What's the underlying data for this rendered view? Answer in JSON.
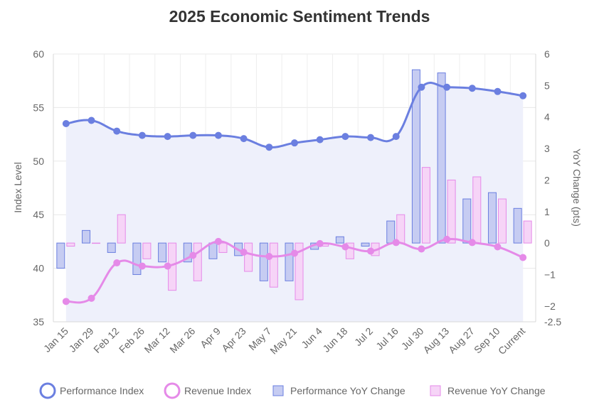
{
  "chart_data": {
    "type": "bar",
    "title": "2025 Economic Sentiment Trends",
    "categories": [
      "Jan 15",
      "Jan 29",
      "Feb 12",
      "Feb 26",
      "Mar 12",
      "Mar 26",
      "Apr 9",
      "Apr 23",
      "May 7",
      "May 21",
      "Jun 4",
      "Jun 18",
      "Jul 2",
      "Jul 16",
      "Jul 30",
      "Aug 13",
      "Aug 27",
      "Sep 10",
      "Current"
    ],
    "y_left": {
      "label": "Index Level",
      "min": 35,
      "max": 60,
      "ticks": [
        35,
        40,
        45,
        50,
        55,
        60
      ]
    },
    "y_right": {
      "label": "YoY Change (pts)",
      "min": -2.5,
      "max": 6,
      "ticks": [
        -2.5,
        -2,
        -1,
        0,
        1,
        2,
        3,
        4,
        5,
        6
      ],
      "tick_labels": [
        "-2.5",
        "−2",
        "−1",
        "0",
        "1",
        "2",
        "3",
        "4",
        "5",
        "6"
      ]
    },
    "series": [
      {
        "name": "Performance Index",
        "type": "line",
        "axis": "left",
        "color": "#6b7fe0",
        "fill": "#eef0fb",
        "values": [
          53.5,
          53.8,
          52.8,
          52.4,
          52.3,
          52.4,
          52.4,
          52.1,
          51.3,
          51.7,
          52.0,
          52.3,
          52.2,
          52.3,
          56.9,
          56.9,
          56.8,
          56.5,
          56.1
        ]
      },
      {
        "name": "Revenue Index",
        "type": "line",
        "axis": "left",
        "color": "#e58ae8",
        "values": [
          36.9,
          37.2,
          40.5,
          40.2,
          40.2,
          41.2,
          42.5,
          41.5,
          41.1,
          41.4,
          42.3,
          42.0,
          41.6,
          42.4,
          41.8,
          42.7,
          42.4,
          42.0,
          41.0
        ]
      },
      {
        "name": "Performance YoY Change",
        "type": "bar",
        "axis": "right",
        "color": "#6b7fe0",
        "fill": "#c6ccf2",
        "values": [
          -0.8,
          0.4,
          -0.3,
          -1.0,
          -0.6,
          -0.6,
          -0.5,
          -0.4,
          -1.2,
          -1.2,
          -0.2,
          0.2,
          -0.1,
          0.7,
          5.5,
          5.4,
          1.4,
          1.6,
          1.1
        ]
      },
      {
        "name": "Revenue YoY Change",
        "type": "bar",
        "axis": "right",
        "color": "#e58ae8",
        "fill": "#f6d4f7",
        "values": [
          -0.1,
          0.0,
          0.9,
          -0.5,
          -1.5,
          -1.2,
          -0.3,
          -0.9,
          -1.4,
          -1.8,
          -0.1,
          -0.5,
          -0.4,
          0.9,
          2.4,
          2.0,
          2.1,
          1.4,
          0.7
        ]
      }
    ],
    "legend_position": "bottom",
    "grid": true
  }
}
